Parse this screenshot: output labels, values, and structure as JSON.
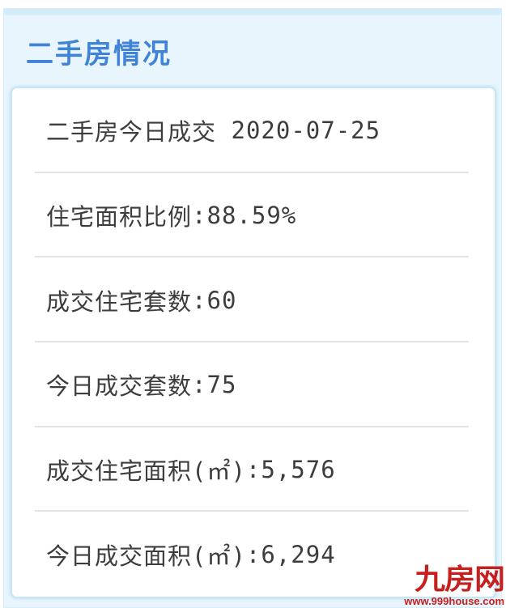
{
  "panel": {
    "title": "二手房情况"
  },
  "card": {
    "rows": [
      {
        "label": "二手房今日成交",
        "sep": " ",
        "value": "2020-07-25"
      },
      {
        "label": "住宅面积比例",
        "sep": ":",
        "value": "88.59%"
      },
      {
        "label": "成交住宅套数",
        "sep": ":",
        "value": "60"
      },
      {
        "label": "今日成交套数",
        "sep": ":",
        "value": "75"
      },
      {
        "label": "成交住宅面积(㎡)",
        "sep": ":",
        "value": "5,576"
      },
      {
        "label": "今日成交面积(㎡)",
        "sep": ":",
        "value": "6,294"
      }
    ]
  },
  "watermark": {
    "site_name": "九房网",
    "site_url": "www.999house.com"
  },
  "colors": {
    "header_blue": "#4184d7",
    "panel_bg": "#e9f5fc",
    "panel_band": "#d2ecf8",
    "panel_border": "#d5edf8",
    "card_border": "#c8e6f6",
    "divider": "#e3e3e3",
    "text": "#3d3d3d",
    "brand_red": "#c5201e"
  }
}
